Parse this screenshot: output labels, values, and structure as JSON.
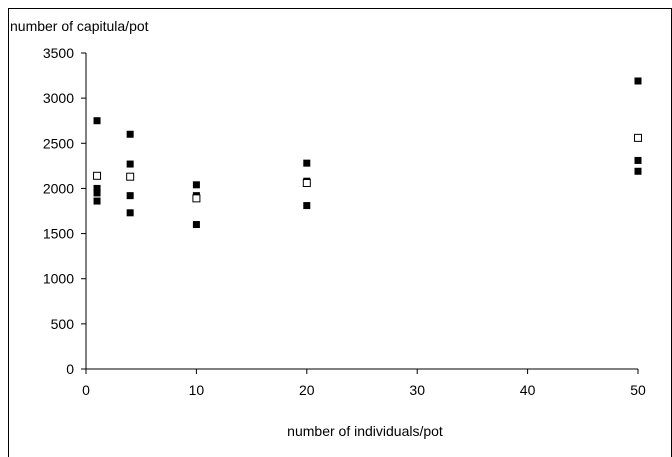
{
  "chart_data": {
    "type": "scatter",
    "title": "",
    "ylabel": "number of capitula/pot",
    "xlabel": "number of individuals/pot",
    "xlim": [
      0,
      50
    ],
    "ylim": [
      0,
      3500
    ],
    "x_ticks": [
      "0",
      "10",
      "20",
      "30",
      "40",
      "50"
    ],
    "y_ticks": [
      "0",
      "500",
      "1000",
      "1500",
      "2000",
      "2500",
      "3000",
      "3500"
    ],
    "grid": false,
    "legend": "none",
    "series": [
      {
        "marker": "filled-square",
        "color": "#000000",
        "points": [
          {
            "x": 1,
            "y": 2750
          },
          {
            "x": 1,
            "y": 2000
          },
          {
            "x": 1,
            "y": 1950
          },
          {
            "x": 1,
            "y": 1860
          },
          {
            "x": 4,
            "y": 2600
          },
          {
            "x": 4,
            "y": 2270
          },
          {
            "x": 4,
            "y": 1920
          },
          {
            "x": 4,
            "y": 1730
          },
          {
            "x": 10,
            "y": 2040
          },
          {
            "x": 10,
            "y": 1920
          },
          {
            "x": 10,
            "y": 1600
          },
          {
            "x": 20,
            "y": 2280
          },
          {
            "x": 20,
            "y": 2080
          },
          {
            "x": 20,
            "y": 1810
          },
          {
            "x": 50,
            "y": 3190
          },
          {
            "x": 50,
            "y": 2310
          },
          {
            "x": 50,
            "y": 2190
          }
        ]
      },
      {
        "marker": "open-square",
        "color": "#000000",
        "points": [
          {
            "x": 1,
            "y": 2140
          },
          {
            "x": 4,
            "y": 2130
          },
          {
            "x": 10,
            "y": 1890
          },
          {
            "x": 20,
            "y": 2060
          },
          {
            "x": 50,
            "y": 2560
          }
        ]
      }
    ]
  }
}
